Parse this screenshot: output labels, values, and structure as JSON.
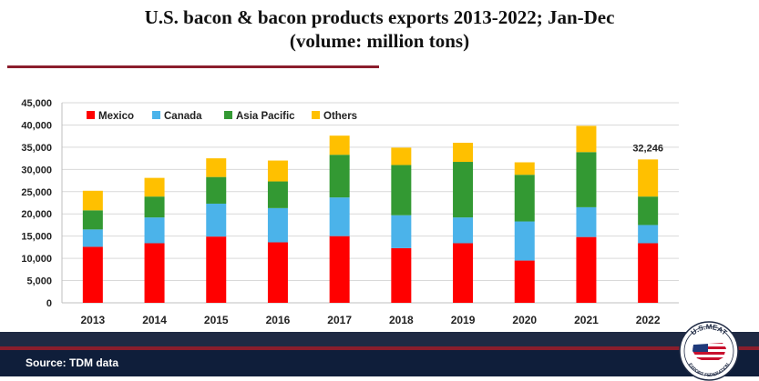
{
  "title": {
    "line1": "U.S. bacon & bacon products exports 2013-2022; Jan-Dec",
    "line2": "(volume: million tons)"
  },
  "source": "Source: TDM data",
  "logo": {
    "name": "us-meat-export-federation-logo",
    "arc_top": "U.S.MEAT",
    "arc_bottom": "EXPORT FEDERATION"
  },
  "colors": {
    "title_rule": "#8b1d2c",
    "footer_band": "#1f2a44",
    "footer_bottom": "#0f1e3a",
    "Mexico": "#ff0000",
    "Canada": "#4bb3ea",
    "Asia Pacific": "#339933",
    "Others": "#ffc000"
  },
  "chart_data": {
    "type": "bar",
    "stacked": true,
    "categories": [
      "2013",
      "2014",
      "2015",
      "2016",
      "2017",
      "2018",
      "2019",
      "2020",
      "2021",
      "2022"
    ],
    "series": [
      {
        "name": "Mexico",
        "color": "#ff0000",
        "values": [
          12600,
          13400,
          14900,
          13600,
          15000,
          12300,
          13400,
          9500,
          14800,
          13400
        ]
      },
      {
        "name": "Canada",
        "color": "#4bb3ea",
        "values": [
          3900,
          5800,
          7400,
          7700,
          8700,
          7400,
          5800,
          8800,
          6700,
          4100
        ]
      },
      {
        "name": "Asia Pacific",
        "color": "#339933",
        "values": [
          4300,
          4700,
          6000,
          6000,
          9600,
          11300,
          12500,
          10500,
          12400,
          6400
        ]
      },
      {
        "name": "Others",
        "color": "#ffc000",
        "values": [
          4400,
          4200,
          4200,
          4700,
          4300,
          3900,
          4300,
          2800,
          5900,
          8346
        ]
      }
    ],
    "annotations": [
      {
        "category": "2022",
        "text": "32,246"
      }
    ],
    "yticks": [
      "0",
      "5,000",
      "10,000",
      "15,000",
      "20,000",
      "25,000",
      "30,000",
      "35,000",
      "40,000",
      "45,000"
    ],
    "ylim": [
      0,
      45000
    ],
    "grid": true,
    "legend": "top-left",
    "xlabel": "",
    "ylabel": ""
  }
}
